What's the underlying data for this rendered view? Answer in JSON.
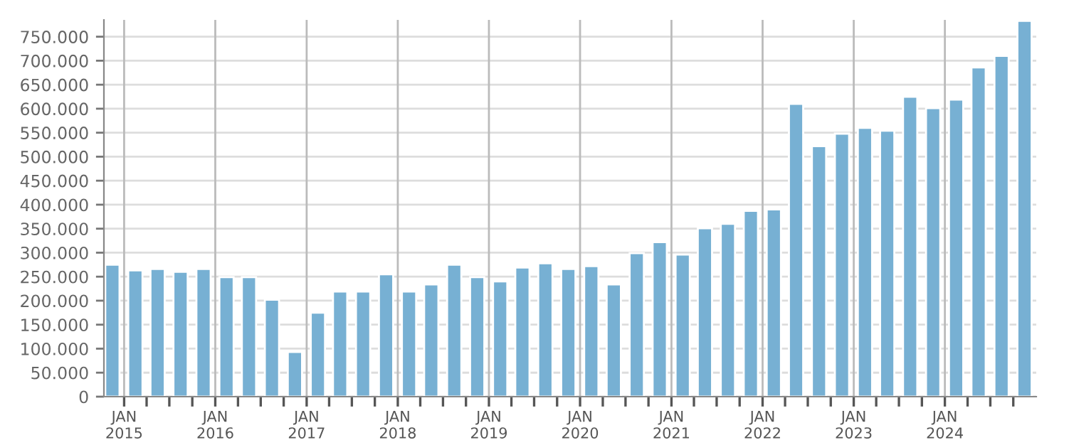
{
  "chart_data": {
    "type": "bar",
    "x": [
      "2014-11-15",
      "2015-02-15",
      "2015-05-15",
      "2015-08-15",
      "2015-11-15",
      "2016-02-15",
      "2016-05-15",
      "2016-08-15",
      "2016-11-15",
      "2017-02-15",
      "2017-05-15",
      "2017-08-15",
      "2017-11-15",
      "2018-02-15",
      "2018-05-15",
      "2018-08-15",
      "2018-11-15",
      "2019-02-15",
      "2019-05-15",
      "2019-08-15",
      "2019-11-15",
      "2020-02-15",
      "2020-05-15",
      "2020-08-15",
      "2020-11-15",
      "2021-02-15",
      "2021-05-15",
      "2021-08-15",
      "2021-11-15",
      "2022-02-15",
      "2022-05-15",
      "2022-08-15",
      "2022-11-15",
      "2023-02-15",
      "2023-05-15",
      "2023-08-15",
      "2023-11-15",
      "2024-02-15",
      "2024-05-15",
      "2024-08-15",
      "2024-11-15"
    ],
    "values": [
      275000,
      263000,
      266000,
      260000,
      266000,
      249000,
      249000,
      202000,
      93000,
      175000,
      219000,
      219000,
      255000,
      219000,
      234000,
      275000,
      249000,
      240000,
      269000,
      278000,
      266000,
      272000,
      234000,
      299000,
      322000,
      296000,
      351000,
      360000,
      387000,
      390000,
      610000,
      522000,
      548000,
      560000,
      554000,
      625000,
      601000,
      619000,
      686000,
      710000,
      783000
    ],
    "color": "#77b0d3",
    "xlim": [
      "2014-10-12",
      "2025-01-01"
    ],
    "xticks": [
      {
        "value": "2015-01-01",
        "label": "JAN\n2015"
      },
      {
        "value": "2015-04-01",
        "label": null
      },
      {
        "value": "2015-07-01",
        "label": null
      },
      {
        "value": "2015-10-01",
        "label": null
      },
      {
        "value": "2016-01-01",
        "label": "JAN\n2016"
      },
      {
        "value": "2016-04-01",
        "label": null
      },
      {
        "value": "2016-07-01",
        "label": null
      },
      {
        "value": "2016-10-01",
        "label": null
      },
      {
        "value": "2017-01-01",
        "label": "JAN\n2017"
      },
      {
        "value": "2017-04-01",
        "label": null
      },
      {
        "value": "2017-07-01",
        "label": null
      },
      {
        "value": "2017-10-01",
        "label": null
      },
      {
        "value": "2018-01-01",
        "label": "JAN\n2018"
      },
      {
        "value": "2018-04-01",
        "label": null
      },
      {
        "value": "2018-07-01",
        "label": null
      },
      {
        "value": "2018-10-01",
        "label": null
      },
      {
        "value": "2019-01-01",
        "label": "JAN\n2019"
      },
      {
        "value": "2019-04-01",
        "label": null
      },
      {
        "value": "2019-07-01",
        "label": null
      },
      {
        "value": "2019-10-01",
        "label": null
      },
      {
        "value": "2020-01-01",
        "label": "JAN\n2020"
      },
      {
        "value": "2020-04-01",
        "label": null
      },
      {
        "value": "2020-07-01",
        "label": null
      },
      {
        "value": "2020-10-01",
        "label": null
      },
      {
        "value": "2021-01-01",
        "label": "JAN\n2021"
      },
      {
        "value": "2021-04-01",
        "label": null
      },
      {
        "value": "2021-07-01",
        "label": null
      },
      {
        "value": "2021-10-01",
        "label": null
      },
      {
        "value": "2022-01-01",
        "label": "JAN\n2022"
      },
      {
        "value": "2022-04-01",
        "label": null
      },
      {
        "value": "2022-07-01",
        "label": null
      },
      {
        "value": "2022-10-01",
        "label": null
      },
      {
        "value": "2023-01-01",
        "label": "JAN\n2023"
      },
      {
        "value": "2023-04-01",
        "label": null
      },
      {
        "value": "2023-07-01",
        "label": null
      },
      {
        "value": "2023-10-01",
        "label": null
      },
      {
        "value": "2024-01-01",
        "label": "JAN\n2024"
      },
      {
        "value": "2024-04-01",
        "label": null
      },
      {
        "value": "2024-07-01",
        "label": null
      },
      {
        "value": "2024-10-01",
        "label": null
      }
    ],
    "ylim": [
      0,
      785000
    ],
    "yticks": [
      0,
      {
        "value": 50000,
        "label": "50.000"
      },
      {
        "value": 100000,
        "label": "100.000"
      },
      {
        "value": 150000,
        "label": "150.000"
      },
      {
        "value": 200000,
        "label": "200.000"
      },
      {
        "value": 250000,
        "label": "250.000"
      },
      {
        "value": 300000,
        "label": "300.000"
      },
      {
        "value": 350000,
        "label": "350.000"
      },
      {
        "value": 400000,
        "label": "400.000"
      },
      {
        "value": 450000,
        "label": "450.000"
      },
      {
        "value": 500000,
        "label": "500.000"
      },
      {
        "value": 550000,
        "label": "550.000"
      },
      {
        "value": 600000,
        "label": "600.000"
      },
      {
        "value": 650000,
        "label": "650.000"
      },
      {
        "value": 700000,
        "label": "700.000"
      },
      {
        "value": 750000,
        "label": "750.000"
      }
    ],
    "grid": true
  }
}
